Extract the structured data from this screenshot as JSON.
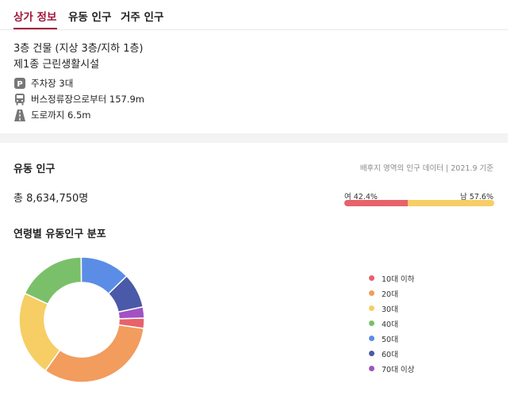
{
  "tabs": [
    {
      "label": "상가 정보",
      "active": true
    },
    {
      "label": "유동 인구",
      "active": false
    },
    {
      "label": "거주 인구",
      "active": false
    }
  ],
  "building": {
    "floors": "3층 건물 (지상 3층/지하 1층)",
    "type": "제1종 근린생활시설"
  },
  "features": [
    {
      "icon": "parking-icon",
      "text": "주차장 3대"
    },
    {
      "icon": "bus-icon",
      "text": "버스정류장으로부터 157.9m"
    },
    {
      "icon": "road-icon",
      "text": "도로까지 6.5m"
    }
  ],
  "population": {
    "title": "유동 인구",
    "note": "배후지 영역의 인구 데이터 | 2021.9 기준",
    "total": "총 8,634,750명",
    "female_label": "여 42.4%",
    "male_label": "남 57.6%",
    "female_pct": 42.4,
    "male_pct": 57.6,
    "female_color": "#e8626b",
    "male_color": "#f6ce65"
  },
  "distribution": {
    "title": "연령별 유동인구 분포"
  },
  "chart_data": {
    "type": "pie",
    "title": "연령별 유동인구 분포",
    "categories": [
      "10대 이하",
      "20대",
      "30대",
      "40대",
      "50대",
      "60대",
      "70대 이상"
    ],
    "values": [
      2.6,
      32.0,
      21.6,
      17.6,
      12.6,
      8.8,
      2.8
    ],
    "colors": [
      "#e8626b",
      "#f29c5e",
      "#f6ce65",
      "#7ac06a",
      "#5b8de6",
      "#4a5aa8",
      "#a152c2"
    ],
    "legend": "right"
  }
}
